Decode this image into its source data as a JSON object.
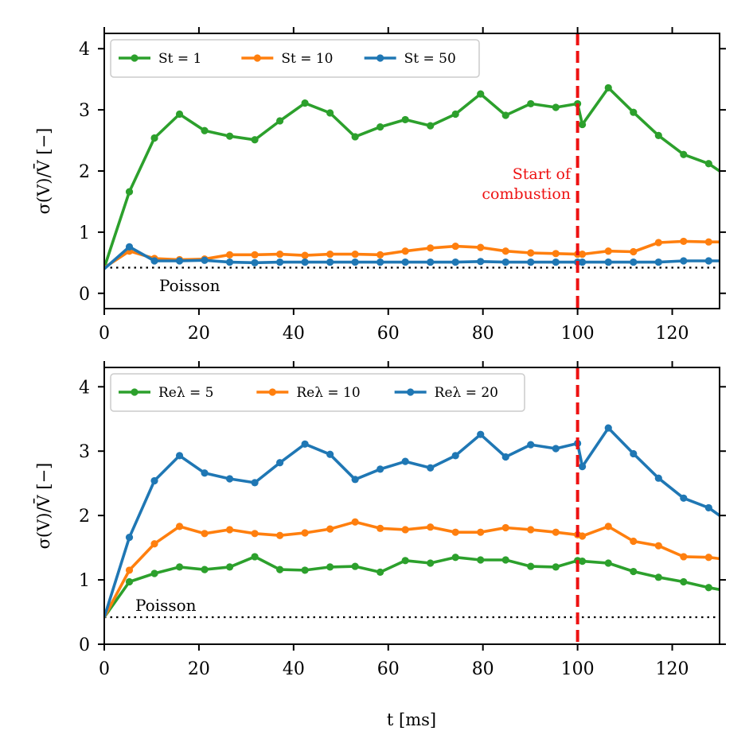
{
  "colors": {
    "green": "#2ca02c",
    "orange": "#ff7f0e",
    "blue": "#1f77b4",
    "red": "#ee1111",
    "black": "#000000"
  },
  "chart_data": [
    {
      "type": "line",
      "xlabel": "",
      "ylabel": "σ(V)/V̄ [−]",
      "xlim": [
        0,
        130
      ],
      "ylim": [
        -0.25,
        4.25
      ],
      "xticks": [
        0,
        20,
        40,
        60,
        80,
        100,
        120
      ],
      "yticks": [
        0,
        1,
        2,
        3,
        4
      ],
      "legend_position": "top-left",
      "x": [
        0,
        5.3,
        10.6,
        15.9,
        21.2,
        26.5,
        31.8,
        37.1,
        42.4,
        47.7,
        53.0,
        58.3,
        63.6,
        68.9,
        74.2,
        79.5,
        84.8,
        90.1,
        95.4,
        100.0,
        101.0,
        106.5,
        111.8,
        117.1,
        122.4,
        127.7,
        130.0
      ],
      "series": [
        {
          "name": "St = 1",
          "color": "green",
          "values": [
            0.42,
            1.66,
            2.54,
            2.93,
            2.66,
            2.57,
            2.51,
            2.82,
            3.11,
            2.95,
            2.56,
            2.72,
            2.84,
            2.74,
            2.93,
            3.26,
            2.91,
            3.1,
            3.04,
            3.1,
            2.76,
            3.36,
            2.96,
            2.58,
            2.27,
            2.12,
            2.0
          ]
        },
        {
          "name": "St = 10",
          "color": "orange",
          "values": [
            0.42,
            0.69,
            0.57,
            0.55,
            0.56,
            0.63,
            0.63,
            0.64,
            0.62,
            0.64,
            0.64,
            0.63,
            0.69,
            0.74,
            0.77,
            0.75,
            0.69,
            0.66,
            0.65,
            0.64,
            0.64,
            0.69,
            0.68,
            0.83,
            0.85,
            0.84,
            0.84
          ]
        },
        {
          "name": "St = 50",
          "color": "blue",
          "values": [
            0.4,
            0.76,
            0.53,
            0.53,
            0.54,
            0.51,
            0.5,
            0.51,
            0.51,
            0.51,
            0.51,
            0.51,
            0.51,
            0.51,
            0.51,
            0.52,
            0.51,
            0.51,
            0.51,
            0.51,
            0.51,
            0.51,
            0.51,
            0.51,
            0.53,
            0.53,
            0.53
          ]
        }
      ],
      "poisson_level": 0.42,
      "poisson_label": "Poisson",
      "combustion_x": 100,
      "annotation": {
        "line1": "Start of",
        "line2": "combustion"
      }
    },
    {
      "type": "line",
      "xlabel": "t [ms]",
      "ylabel": "σ(V)/V̄ [−]",
      "xlim": [
        0,
        130
      ],
      "ylim": [
        0,
        4.3
      ],
      "xticks": [
        0,
        20,
        40,
        60,
        80,
        100,
        120
      ],
      "yticks": [
        0,
        1,
        2,
        3,
        4
      ],
      "legend_position": "top-left",
      "x": [
        0,
        5.3,
        10.6,
        15.9,
        21.2,
        26.5,
        31.8,
        37.1,
        42.4,
        47.7,
        53.0,
        58.3,
        63.6,
        68.9,
        74.2,
        79.5,
        84.8,
        90.1,
        95.4,
        100.0,
        101.0,
        106.5,
        111.8,
        117.1,
        122.4,
        127.7,
        130.0
      ],
      "series": [
        {
          "name": "Reλ = 5",
          "color": "green",
          "values": [
            0.42,
            0.97,
            1.1,
            1.2,
            1.16,
            1.2,
            1.36,
            1.16,
            1.15,
            1.2,
            1.21,
            1.12,
            1.3,
            1.26,
            1.35,
            1.31,
            1.31,
            1.21,
            1.2,
            1.3,
            1.29,
            1.26,
            1.13,
            1.04,
            0.97,
            0.88,
            0.85
          ]
        },
        {
          "name": "Reλ = 10",
          "color": "orange",
          "values": [
            0.42,
            1.15,
            1.56,
            1.83,
            1.72,
            1.78,
            1.72,
            1.69,
            1.73,
            1.79,
            1.9,
            1.8,
            1.78,
            1.82,
            1.74,
            1.74,
            1.81,
            1.78,
            1.74,
            1.7,
            1.68,
            1.83,
            1.6,
            1.53,
            1.36,
            1.35,
            1.33
          ]
        },
        {
          "name": "Reλ = 20",
          "color": "blue",
          "values": [
            0.42,
            1.66,
            2.54,
            2.93,
            2.66,
            2.57,
            2.51,
            2.82,
            3.11,
            2.95,
            2.56,
            2.72,
            2.84,
            2.74,
            2.93,
            3.26,
            2.91,
            3.1,
            3.04,
            3.12,
            2.76,
            3.36,
            2.96,
            2.58,
            2.27,
            2.12,
            2.0
          ]
        }
      ],
      "poisson_level": 0.42,
      "poisson_label": "Poisson",
      "combustion_x": 100
    }
  ]
}
